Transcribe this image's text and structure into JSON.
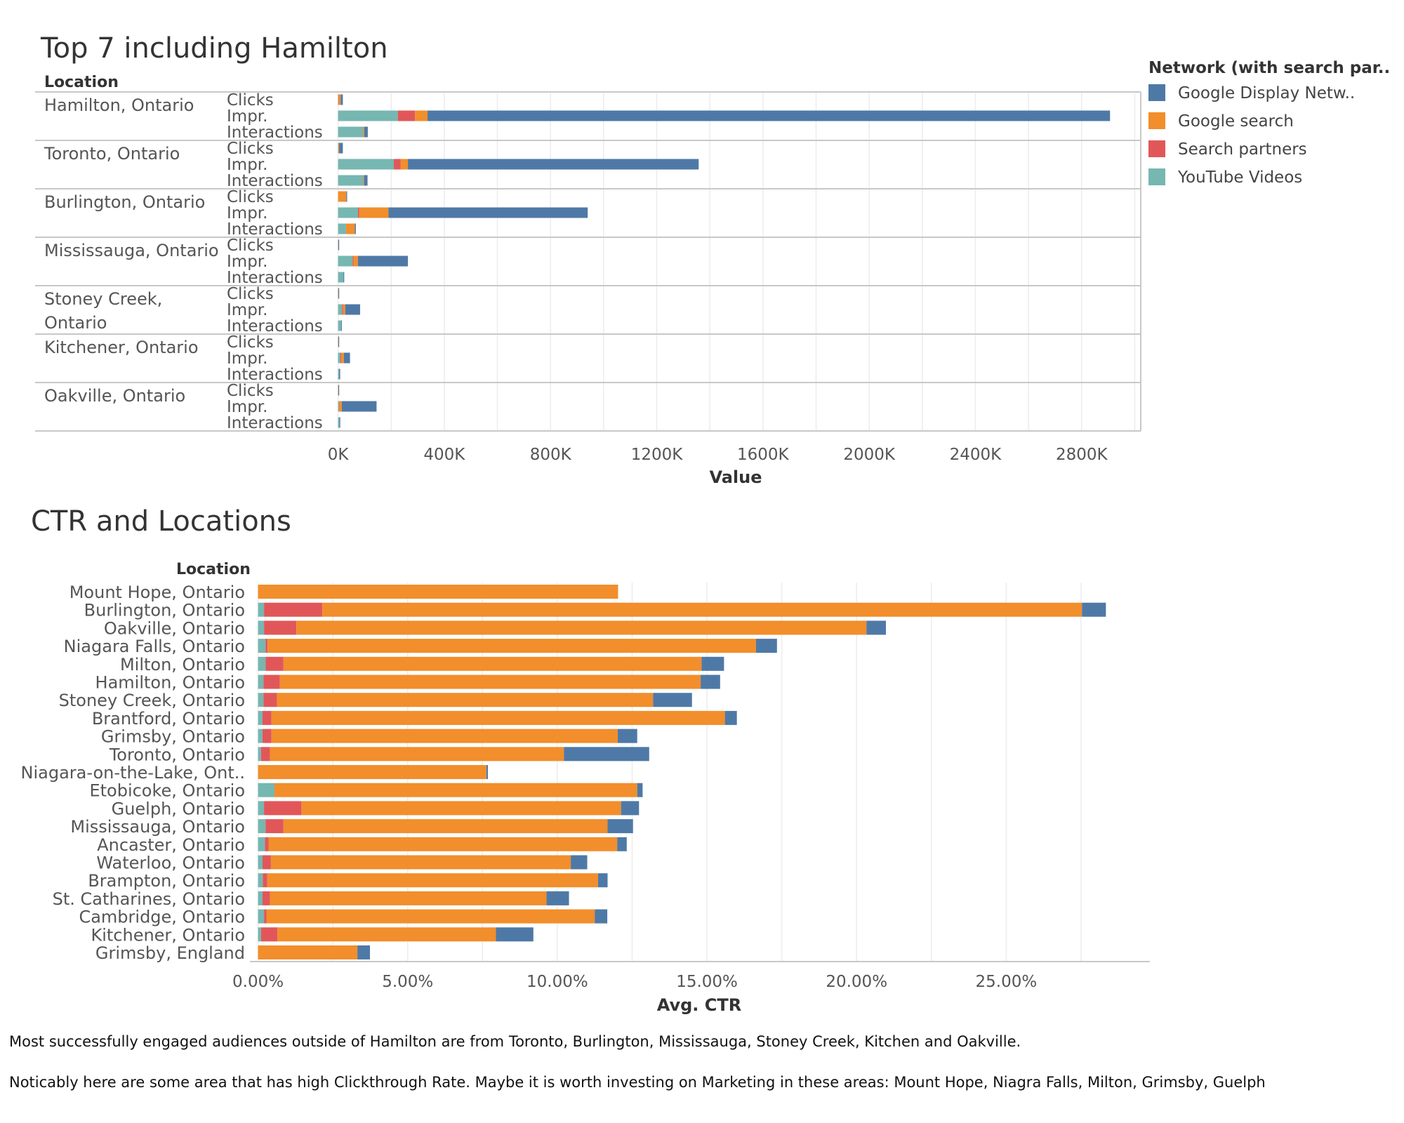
{
  "colors": {
    "Google Display Netw..": "#4e79a7",
    "Google search": "#f28e2b",
    "Search partners": "#e15759",
    "YouTube Videos": "#76b7b2"
  },
  "legend": {
    "title": "Network (with search par..",
    "items": [
      "Google Display Netw..",
      "Google search",
      "Search partners",
      "YouTube Videos"
    ]
  },
  "notes": [
    "Most successfully engaged audiences outside of Hamilton are from Toronto, Burlington, Mississauga, Stoney Creek, Kitchen and Oakville.",
    "Noticably here are some area that has high Clickthrough Rate. Maybe it is worth investing on Marketing in these areas: Mount Hope, Niagra Falls, Milton, Grimsby, Guelph"
  ],
  "chart_data": [
    {
      "type": "bar",
      "orientation": "horizontal",
      "stacked": true,
      "title": "Top 7 including Hamilton",
      "row_header": "Location",
      "xlabel": "Value",
      "xlim": [
        -20000,
        3020000
      ],
      "xticks": [
        0,
        400000,
        800000,
        1200000,
        1600000,
        2000000,
        2400000,
        2800000
      ],
      "xtick_labels": [
        "0K",
        "400K",
        "800K",
        "1200K",
        "1600K",
        "2000K",
        "2400K",
        "2800K"
      ],
      "grid": true,
      "legend_position": "right",
      "measures": [
        "Clicks",
        "Impr.",
        "Interactions"
      ],
      "series_order": [
        "YouTube Videos",
        "Search partners",
        "Google search",
        "Google Display Netw.."
      ],
      "groups": [
        {
          "location": "Hamilton, Ontario",
          "rows": {
            "Clicks": {
              "YouTube Videos": 1000,
              "Search partners": 1000,
              "Google search": 8000,
              "Google Display Netw..": 8000
            },
            "Impr.": {
              "YouTube Videos": 225000,
              "Search partners": 65000,
              "Google search": 47000,
              "Google Display Netw..": 2570000
            },
            "Interactions": {
              "YouTube Videos": 95000,
              "Search partners": 0,
              "Google search": 4000,
              "Google Display Netw..": 13000
            }
          }
        },
        {
          "location": "Toronto, Ontario",
          "rows": {
            "Clicks": {
              "YouTube Videos": 1000,
              "Search partners": 0,
              "Google search": 3000,
              "Google Display Netw..": 14000
            },
            "Impr.": {
              "YouTube Videos": 210000,
              "Search partners": 26000,
              "Google search": 27000,
              "Google Display Netw..": 1095000
            },
            "Interactions": {
              "YouTube Videos": 95000,
              "Search partners": 0,
              "Google search": 3000,
              "Google Display Netw..": 13000
            }
          }
        },
        {
          "location": "Burlington, Ontario",
          "rows": {
            "Clicks": {
              "YouTube Videos": 0,
              "Search partners": 0,
              "Google search": 31000,
              "Google Display Netw..": 3000
            },
            "Impr.": {
              "YouTube Videos": 75000,
              "Search partners": 5000,
              "Google search": 110000,
              "Google Display Netw..": 750000
            },
            "Interactions": {
              "YouTube Videos": 30000,
              "Search partners": 0,
              "Google search": 33000,
              "Google Display Netw..": 4000
            }
          }
        },
        {
          "location": "Mississauga, Ontario",
          "rows": {
            "Clicks": {
              "YouTube Videos": 0,
              "Search partners": 0,
              "Google search": 1000,
              "Google Display Netw..": 2000
            },
            "Impr.": {
              "YouTube Videos": 55000,
              "Search partners": 3000,
              "Google search": 17000,
              "Google Display Netw..": 188000
            },
            "Interactions": {
              "YouTube Videos": 20000,
              "Search partners": 0,
              "Google search": 0,
              "Google Display Netw..": 3000
            }
          }
        },
        {
          "location": "Stoney Creek, Ontario",
          "rows": {
            "Clicks": {
              "YouTube Videos": 0,
              "Search partners": 0,
              "Google search": 1000,
              "Google Display Netw..": 2000
            },
            "Impr.": {
              "YouTube Videos": 15000,
              "Search partners": 4000,
              "Google search": 8000,
              "Google Display Netw..": 56000
            },
            "Interactions": {
              "YouTube Videos": 11000,
              "Search partners": 0,
              "Google search": 0,
              "Google Display Netw..": 3000
            }
          }
        },
        {
          "location": "Kitchener, Ontario",
          "rows": {
            "Clicks": {
              "YouTube Videos": 0,
              "Search partners": 0,
              "Google search": 1000,
              "Google Display Netw..": 2000
            },
            "Impr.": {
              "YouTube Videos": 9000,
              "Search partners": 3000,
              "Google search": 10000,
              "Google Display Netw..": 23000
            },
            "Interactions": {
              "YouTube Videos": 4000,
              "Search partners": 0,
              "Google search": 0,
              "Google Display Netw..": 4000
            }
          }
        },
        {
          "location": "Oakville, Ontario",
          "rows": {
            "Clicks": {
              "YouTube Videos": 0,
              "Search partners": 0,
              "Google search": 1000,
              "Google Display Netw..": 2000
            },
            "Impr.": {
              "YouTube Videos": 3000,
              "Search partners": 1000,
              "Google search": 10000,
              "Google Display Netw..": 131000
            },
            "Interactions": {
              "YouTube Videos": 5000,
              "Search partners": 0,
              "Google search": 0,
              "Google Display Netw..": 3000
            }
          }
        }
      ]
    },
    {
      "type": "bar",
      "orientation": "horizontal",
      "stacked": true,
      "title": "CTR and Locations",
      "row_header": "Location",
      "xlabel": "Avg. CTR",
      "xlim": [
        -0.006,
        0.298
      ],
      "xticks": [
        0,
        0.05,
        0.1,
        0.15,
        0.2,
        0.25
      ],
      "xtick_labels": [
        "0.00%",
        "5.00%",
        "10.00%",
        "15.00%",
        "20.00%",
        "25.00%"
      ],
      "grid": true,
      "series_order": [
        "YouTube Videos",
        "Search partners",
        "Google search",
        "Google Display Netw.."
      ],
      "categories": [
        "Mount Hope, Ontario",
        "Burlington, Ontario",
        "Oakville, Ontario",
        "Niagara Falls, Ontario",
        "Milton, Ontario",
        "Hamilton, Ontario",
        "Stoney Creek, Ontario",
        "Brantford, Ontario",
        "Grimsby, Ontario",
        "Toronto, Ontario",
        "Niagara-on-the-Lake, Ont..",
        "Etobicoke, Ontario",
        "Guelph, Ontario",
        "Mississauga, Ontario",
        "Ancaster, Ontario",
        "Waterloo, Ontario",
        "Brampton, Ontario",
        "St. Catharines, Ontario",
        "Cambridge, Ontario",
        "Kitchener, Ontario",
        "Grimsby, England"
      ],
      "series": [
        {
          "name": "YouTube Videos",
          "values": [
            0,
            0.002,
            0.002,
            0.0025,
            0.0025,
            0.0018,
            0.0018,
            0.0015,
            0.0015,
            0.001,
            0,
            0.0055,
            0.002,
            0.0025,
            0.0023,
            0.0015,
            0.0016,
            0.0015,
            0.002,
            0.001,
            0
          ]
        },
        {
          "name": "Search partners",
          "values": [
            0,
            0.0195,
            0.0108,
            0.0007,
            0.006,
            0.0055,
            0.0045,
            0.003,
            0.003,
            0.003,
            0,
            0,
            0.0125,
            0.006,
            0.0012,
            0.0028,
            0.0015,
            0.0025,
            0.0008,
            0.0055,
            0
          ]
        },
        {
          "name": "Google search",
          "values": [
            0.1203,
            0.2538,
            0.1905,
            0.1632,
            0.1397,
            0.1406,
            0.1257,
            0.1515,
            0.1157,
            0.0982,
            0.0763,
            0.1212,
            0.1068,
            0.1083,
            0.1165,
            0.1002,
            0.1105,
            0.0924,
            0.1097,
            0.073,
            0.0332
          ]
        },
        {
          "name": "Google Display Netw..",
          "values": [
            0,
            0.008,
            0.0065,
            0.007,
            0.0075,
            0.0065,
            0.013,
            0.004,
            0.0065,
            0.0285,
            0.0005,
            0.0018,
            0.006,
            0.0085,
            0.0032,
            0.0055,
            0.0032,
            0.0075,
            0.0042,
            0.0125,
            0.0042
          ]
        }
      ]
    }
  ]
}
